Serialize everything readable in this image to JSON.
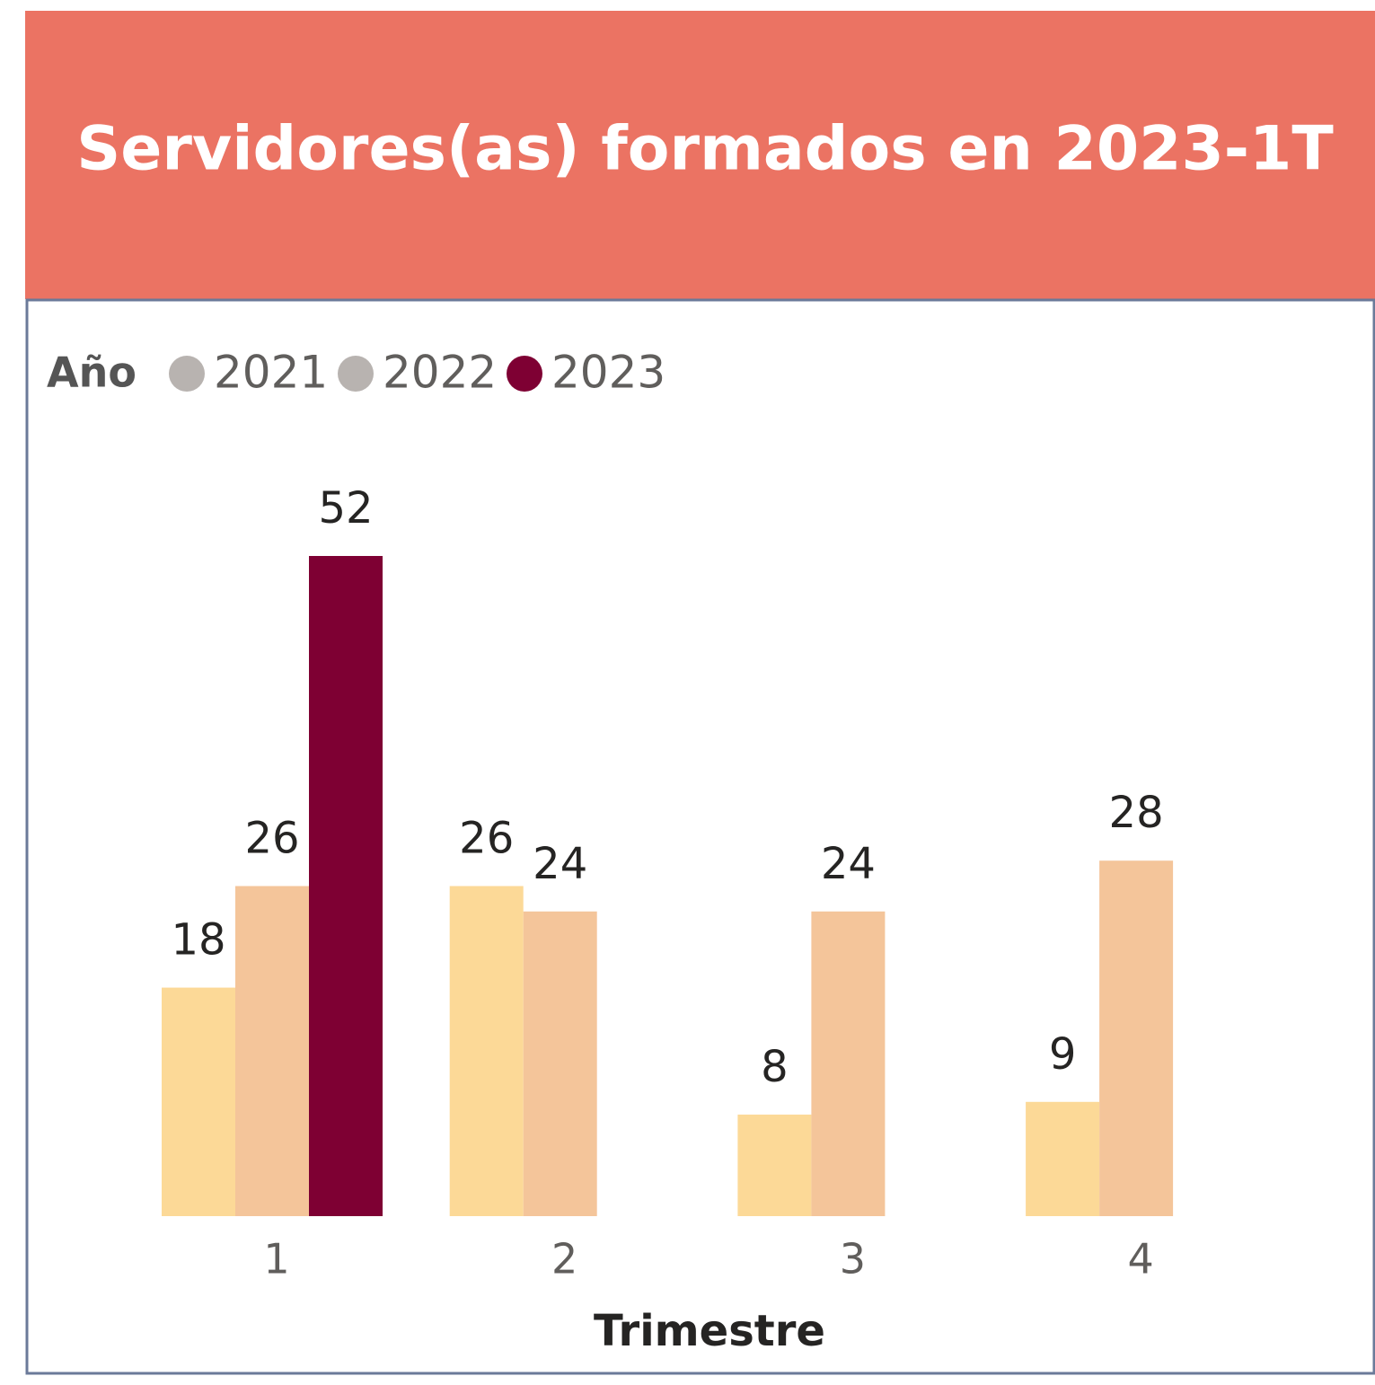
{
  "chart_data": {
    "type": "bar",
    "title": "Servidores(as) formados en 2023-1T",
    "legend_title": "Año",
    "x_label": "Trimestre",
    "categories": [
      "1",
      "2",
      "3",
      "4"
    ],
    "series": [
      {
        "name": "2021",
        "color": "#FCD997",
        "legend_color": "#B8B3B0",
        "values": [
          18,
          26,
          8,
          9
        ]
      },
      {
        "name": "2022",
        "color": "#F4C59A",
        "legend_color": "#B8B3B0",
        "values": [
          26,
          24,
          24,
          28
        ]
      },
      {
        "name": "2023",
        "color": "#7E0033",
        "legend_color": "#7E0033",
        "values": [
          52,
          null,
          null,
          null
        ]
      }
    ],
    "ylim": [
      0,
      52
    ],
    "header_color": "#EB7363"
  }
}
